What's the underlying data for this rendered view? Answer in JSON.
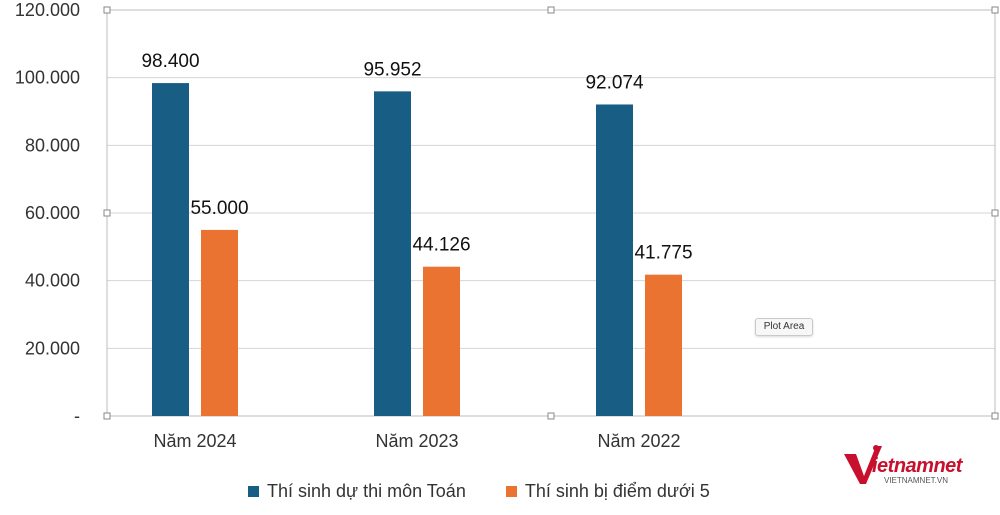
{
  "chart_data": {
    "type": "bar",
    "categories": [
      "Năm 2024",
      "Năm 2023",
      "Năm 2022"
    ],
    "series": [
      {
        "name": "Thí sinh dự thi môn Toán",
        "values": [
          98400,
          95952,
          92074
        ],
        "labels": [
          "98.400",
          "95.952",
          "92.074"
        ],
        "color": "#175d84"
      },
      {
        "name": "Thí sinh bị điểm dưới 5",
        "values": [
          55000,
          44126,
          41775
        ],
        "labels": [
          "55.000",
          "44.126",
          "41.775"
        ],
        "color": "#eb7332"
      }
    ],
    "ylim": [
      0,
      120000
    ],
    "yticks": [
      0,
      20000,
      40000,
      60000,
      80000,
      100000,
      120000
    ],
    "ytick_labels": [
      "-",
      "20.000",
      "40.000",
      "60.000",
      "80.000",
      "100.000",
      "120.000"
    ],
    "grid": true,
    "legend_position": "bottom"
  },
  "tooltip": "Plot Area",
  "logo": {
    "brand": "vietnamnet",
    "sub": "VIETNAMNET.VN",
    "color": "#c8102e"
  }
}
